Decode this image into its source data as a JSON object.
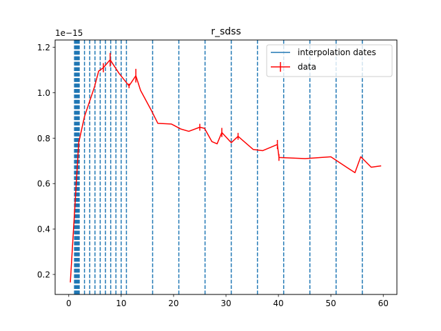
{
  "chart_data": {
    "type": "line",
    "title": "r_sdss",
    "xlabel": "",
    "ylabel": "",
    "y_scale_label": "1e−15",
    "xlim": [
      -2.6,
      62.6
    ],
    "ylim": [
      0.112,
      1.232
    ],
    "x_ticks": [
      0,
      10,
      20,
      30,
      40,
      50,
      60
    ],
    "y_ticks": [
      0.2,
      0.4,
      0.6,
      0.8,
      1.0,
      1.2
    ],
    "y_tick_labels": [
      "0.2",
      "0.4",
      "0.6",
      "0.8",
      "1.0",
      "1.2"
    ],
    "grid": false,
    "legend": {
      "placement": "top-right",
      "entries": [
        "interpolation dates",
        "data"
      ]
    },
    "colors": {
      "interpolation": "#1f77b4",
      "data": "#ff0000"
    },
    "interpolation_dates": [
      1.1,
      1.2,
      1.3,
      1.4,
      1.5,
      1.6,
      1.7,
      1.8,
      1.9,
      2.0,
      3.0,
      4.0,
      5.0,
      6.0,
      7.0,
      8.0,
      9.0,
      10.0,
      11.0,
      16.0,
      21.0,
      26.0,
      31.0,
      36.0,
      41.0,
      46.0,
      51.0,
      56.0
    ],
    "series": [
      {
        "name": "data",
        "x": [
          0.3,
          1.9,
          3.0,
          4.9,
          5.7,
          6.6,
          7.9,
          9.6,
          11.5,
          12.8,
          13.7,
          15.8,
          17.0,
          19.6,
          21.4,
          22.9,
          25.0,
          25.9,
          27.3,
          28.3,
          29.2,
          31.0,
          32.3,
          35.2,
          37.0,
          39.8,
          40.1,
          45.1,
          50.0,
          53.0,
          54.6,
          55.7,
          57.7,
          59.6
        ],
        "y": [
          0.165,
          0.78,
          0.895,
          1.025,
          1.095,
          1.11,
          1.145,
          1.085,
          1.03,
          1.075,
          1.01,
          0.92,
          0.865,
          0.862,
          0.84,
          0.83,
          0.848,
          0.843,
          0.785,
          0.775,
          0.825,
          0.78,
          0.808,
          0.75,
          0.745,
          0.772,
          0.715,
          0.71,
          0.718,
          0.672,
          0.648,
          0.718,
          0.672,
          0.678
        ],
        "yerr": [
          0,
          0,
          0,
          0,
          0,
          0.02,
          0.03,
          0,
          0.01,
          0.03,
          0,
          0,
          0,
          0,
          0,
          0,
          0.015,
          0,
          0,
          0,
          0.02,
          0,
          0.015,
          0,
          0,
          0.02,
          0.015,
          0,
          0,
          0,
          0,
          0,
          0,
          0
        ]
      }
    ]
  }
}
